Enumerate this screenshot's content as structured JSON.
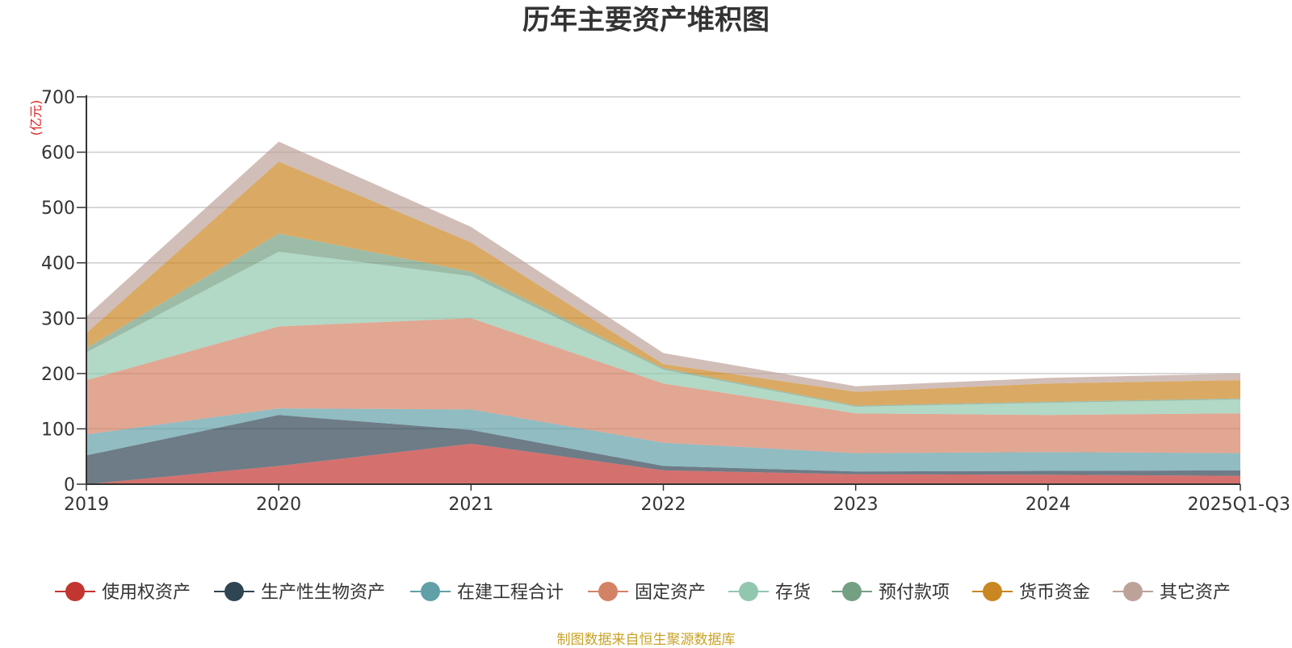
{
  "chart_data": {
    "type": "area",
    "stacked": true,
    "title": "历年主要资产堆积图",
    "ylabel": "(亿元)",
    "xlabel": "",
    "ylim": [
      0,
      700
    ],
    "yticks": [
      0,
      100,
      200,
      300,
      400,
      500,
      600,
      700
    ],
    "categories": [
      "2019",
      "2020",
      "2021",
      "2022",
      "2023",
      "2024",
      "2025Q1-Q3"
    ],
    "grid": true,
    "legend_position": "bottom",
    "series": [
      {
        "name": "使用权资产",
        "color": "#c23531",
        "values": [
          0,
          33,
          73,
          25,
          18,
          17,
          15
        ]
      },
      {
        "name": "生产性生物资产",
        "color": "#2f4554",
        "values": [
          52,
          92,
          25,
          8,
          5,
          7,
          10
        ]
      },
      {
        "name": "在建工程合计",
        "color": "#61a0a8",
        "values": [
          38,
          12,
          37,
          42,
          33,
          34,
          31
        ]
      },
      {
        "name": "固定资产",
        "color": "#d48265",
        "values": [
          98,
          148,
          165,
          107,
          72,
          67,
          72
        ]
      },
      {
        "name": "存货",
        "color": "#91c7ae",
        "values": [
          50,
          135,
          76,
          25,
          12,
          22,
          25
        ]
      },
      {
        "name": "预付款项",
        "color": "#749f83",
        "values": [
          8,
          33,
          8,
          3,
          2,
          2,
          2
        ]
      },
      {
        "name": "货币资金",
        "color": "#ca8622",
        "values": [
          27,
          130,
          53,
          7,
          25,
          33,
          33
        ]
      },
      {
        "name": "其它资产",
        "color": "#bda29a",
        "values": [
          30,
          36,
          28,
          20,
          10,
          10,
          12
        ]
      }
    ]
  },
  "footer_note": "制图数据来自恒生聚源数据库"
}
